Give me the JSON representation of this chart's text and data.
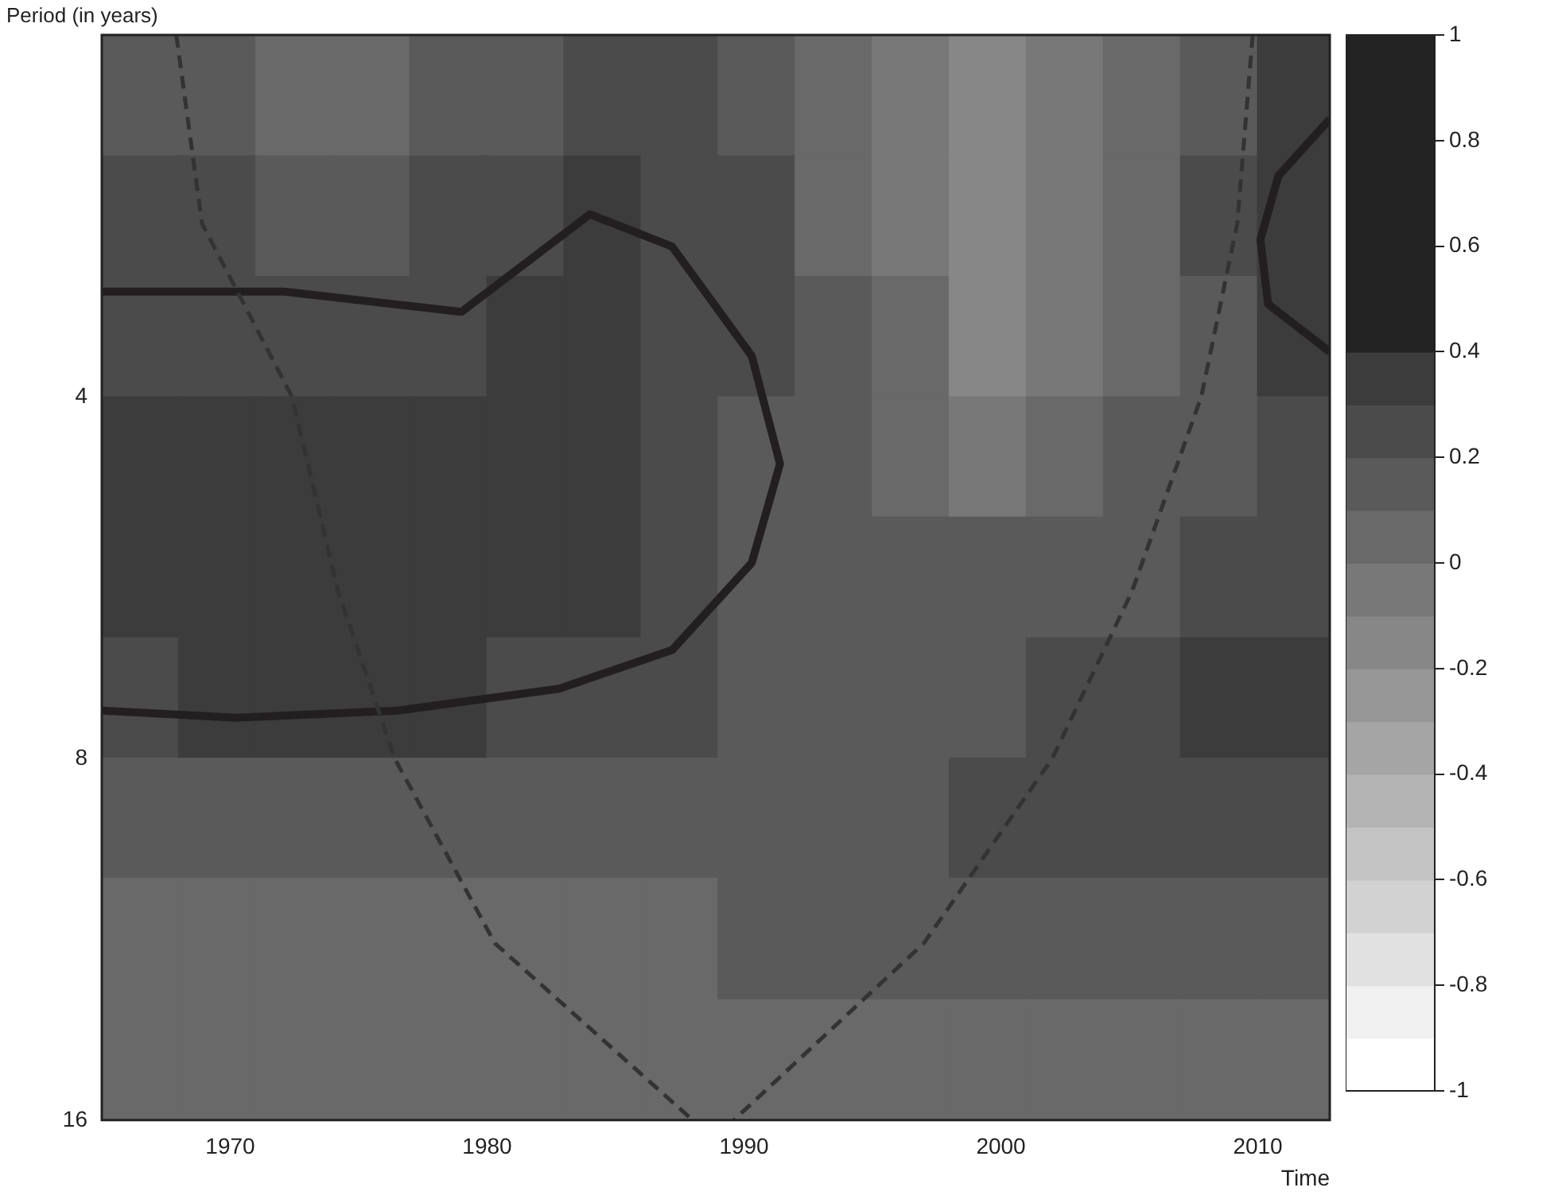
{
  "chart_data": {
    "type": "heatmap",
    "xlabel": "Time",
    "ylabel": "Period (in years)",
    "x": [
      1966.5,
      1969.5,
      1972.5,
      1975.5,
      1978.5,
      1981.5,
      1984.5,
      1987.5,
      1990.5,
      1993.5,
      1996.5,
      1999.5,
      2002.5,
      2005.5,
      2008.5,
      2011.5
    ],
    "y": [
      2.25,
      2.83,
      3.57,
      4.49,
      5.66,
      7.13,
      8.98,
      11.3,
      14.3
    ],
    "cells": [
      [
        0.15,
        0.15,
        0.05,
        0.05,
        0.1,
        0.15,
        0.2,
        0.2,
        0.15,
        0.05,
        -0.05,
        -0.15,
        -0.05,
        0.05,
        0.15,
        0.3
      ],
      [
        0.2,
        0.2,
        0.15,
        0.15,
        0.2,
        0.25,
        0.35,
        0.25,
        0.2,
        0.05,
        -0.05,
        -0.15,
        -0.05,
        0.05,
        0.25,
        0.35
      ],
      [
        0.25,
        0.25,
        0.25,
        0.25,
        0.25,
        0.3,
        0.35,
        0.25,
        0.2,
        0.1,
        0.0,
        -0.15,
        -0.05,
        0.05,
        0.15,
        0.3
      ],
      [
        0.35,
        0.35,
        0.35,
        0.35,
        0.35,
        0.35,
        0.3,
        0.25,
        0.15,
        0.1,
        0.05,
        -0.05,
        0.05,
        0.1,
        0.15,
        0.2
      ],
      [
        0.35,
        0.35,
        0.35,
        0.35,
        0.35,
        0.35,
        0.3,
        0.25,
        0.15,
        0.15,
        0.1,
        0.1,
        0.1,
        0.15,
        0.2,
        0.25
      ],
      [
        0.25,
        0.3,
        0.3,
        0.3,
        0.3,
        0.25,
        0.25,
        0.2,
        0.15,
        0.15,
        0.15,
        0.15,
        0.2,
        0.25,
        0.35,
        0.3
      ],
      [
        0.15,
        0.15,
        0.15,
        0.15,
        0.15,
        0.15,
        0.15,
        0.15,
        0.15,
        0.15,
        0.15,
        0.2,
        0.2,
        0.25,
        0.25,
        0.25
      ],
      [
        0.05,
        0.05,
        0.05,
        0.05,
        0.05,
        0.05,
        0.05,
        0.05,
        0.1,
        0.1,
        0.1,
        0.1,
        0.15,
        0.15,
        0.15,
        0.15
      ],
      [
        0.05,
        0.05,
        0.05,
        0.05,
        0.05,
        0.05,
        0.05,
        0.05,
        0.05,
        0.05,
        0.05,
        0.05,
        0.05,
        0.05,
        0.05,
        0.05
      ]
    ],
    "clim": [
      -1,
      1
    ],
    "cticks": [
      -1,
      -0.8,
      -0.6,
      -0.4,
      -0.2,
      0,
      0.2,
      0.4,
      0.6,
      0.8,
      1
    ],
    "xlim": [
      1965,
      2012.8
    ],
    "xticks": [
      1970,
      1980,
      1990,
      2000,
      2010
    ],
    "ylim": [
      16,
      2
    ],
    "yticks": [
      4,
      8,
      16
    ],
    "log": "y",
    "series": [
      {
        "type": "line",
        "x": [
          1967.9,
          1968.9,
          1972.4,
          1974.2,
          1976.4,
          1980.3,
          1988.0
        ],
        "values": [
          2,
          2.87,
          4,
          5.81,
          8,
          11.4,
          16
        ],
        "color": "#333333",
        "line_style": "dashed",
        "marker": "none"
      },
      {
        "type": "line",
        "x": [
          2009.8,
          2009.2,
          2007.8,
          2005.1,
          2002.0,
          1997.0,
          1989.6
        ],
        "values": [
          2,
          2.87,
          4,
          5.81,
          8,
          11.4,
          16
        ],
        "color": "#333333",
        "line_style": "dashed",
        "marker": "none"
      },
      {
        "type": "line",
        "x": [
          1965,
          1972.1,
          1979.0,
          1984.0,
          1987.2,
          1990.3,
          1991.4,
          1990.3,
          1987.2,
          1982.8,
          1976.5,
          1970.2,
          1965
        ],
        "values": [
          3.27,
          3.27,
          3.4,
          2.82,
          3.0,
          3.7,
          4.55,
          5.5,
          6.5,
          7.0,
          7.3,
          7.4,
          7.3
        ],
        "color": "#231f20",
        "line_style": "solid",
        "marker": "none"
      },
      {
        "type": "line",
        "x": [
          2012.8,
          2010.8,
          2010.1,
          2010.4,
          2012.8
        ],
        "values": [
          2.35,
          2.62,
          2.96,
          3.35,
          3.67
        ],
        "color": "#231f20",
        "line_style": "solid",
        "marker": "none"
      }
    ]
  }
}
